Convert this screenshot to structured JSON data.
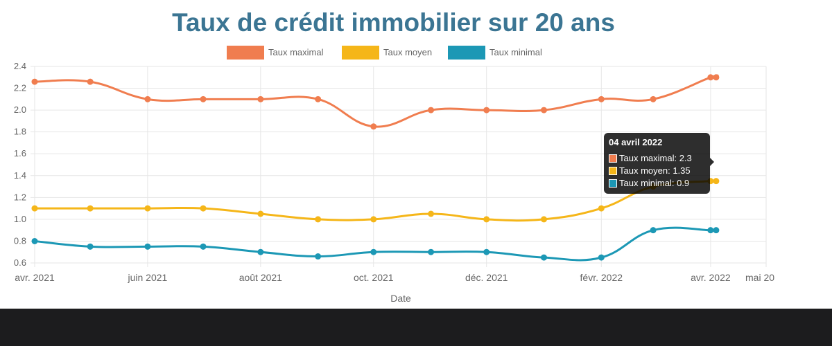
{
  "chart_data": {
    "type": "line",
    "title": "Taux de crédit immobilier sur 20 ans",
    "xlabel": "Date",
    "ylabel": "",
    "ylim": [
      0.6,
      2.4
    ],
    "yticks": [
      "0.6",
      "0.8",
      "1.0",
      "1.2",
      "1.4",
      "1.6",
      "1.8",
      "2.0",
      "2.2",
      "2.4"
    ],
    "xlim": [
      "2021-04-01",
      "2022-05-01"
    ],
    "xticks": [
      {
        "date": "2021-04-01",
        "label": "avr. 2021"
      },
      {
        "date": "2021-06-01",
        "label": "juin 2021"
      },
      {
        "date": "2021-08-01",
        "label": "août 2021"
      },
      {
        "date": "2021-10-01",
        "label": "oct. 2021"
      },
      {
        "date": "2021-12-01",
        "label": "déc. 2021"
      },
      {
        "date": "2022-02-01",
        "label": "févr. 2022"
      },
      {
        "date": "2022-04-01",
        "label": "avr. 2022"
      },
      {
        "date": "2022-05-01",
        "label": "mai 20"
      }
    ],
    "x": [
      "2021-04-01",
      "2021-05-01",
      "2021-06-01",
      "2021-07-01",
      "2021-08-01",
      "2021-09-01",
      "2021-10-01",
      "2021-11-01",
      "2021-12-01",
      "2022-01-01",
      "2022-02-01",
      "2022-03-01",
      "2022-04-01",
      "2022-04-04"
    ],
    "series": [
      {
        "name": "Taux maximal",
        "color": "#f07d4f",
        "values": [
          2.26,
          2.26,
          2.1,
          2.1,
          2.1,
          2.1,
          1.85,
          2.0,
          2.0,
          2.0,
          2.1,
          2.1,
          2.3,
          2.3
        ]
      },
      {
        "name": "Taux moyen",
        "color": "#f5b619",
        "values": [
          1.1,
          1.1,
          1.1,
          1.1,
          1.05,
          1.0,
          1.0,
          1.05,
          1.0,
          1.0,
          1.1,
          1.3,
          1.35,
          1.35
        ]
      },
      {
        "name": "Taux minimal",
        "color": "#1c98b5",
        "values": [
          0.8,
          0.75,
          0.75,
          0.75,
          0.7,
          0.66,
          0.7,
          0.7,
          0.7,
          0.65,
          0.65,
          0.9,
          0.9,
          0.9
        ]
      }
    ],
    "legend_position": "top",
    "grid": true
  },
  "tooltip": {
    "title": "04 avril 2022",
    "rows": [
      {
        "label": "Taux maximal: 2.3",
        "color": "#f07d4f"
      },
      {
        "label": "Taux moyen: 1.35",
        "color": "#f5b619"
      },
      {
        "label": "Taux minimal: 0.9",
        "color": "#1c98b5"
      }
    ]
  }
}
